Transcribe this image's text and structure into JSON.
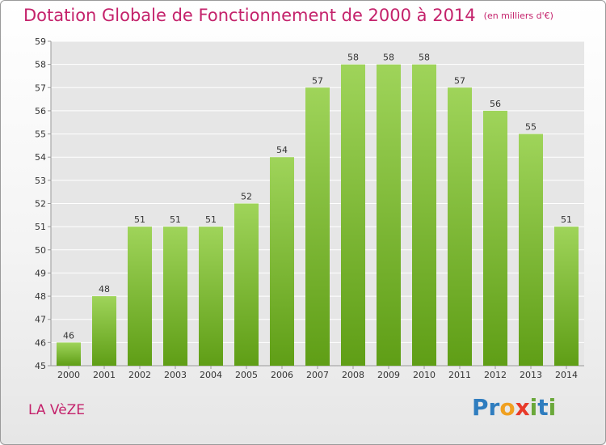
{
  "title": "Dotation Globale de Fonctionnement de 2000 à 2014",
  "unit": "(en milliers d'€)",
  "commune": "LA VèZE",
  "logo": {
    "letters": [
      "P",
      "r",
      "o",
      "x",
      "i",
      "t",
      "i"
    ],
    "colors": [
      "#2f7dbf",
      "#2f7dbf",
      "#f0a020",
      "#e83a2a",
      "#6aa83a",
      "#2f7dbf",
      "#6aa83a"
    ]
  },
  "colors": {
    "bar_top": "#9fd45a",
    "bar_bottom": "#5f9e16",
    "accent": "#c4226b"
  },
  "chart_data": {
    "type": "bar",
    "title": "Dotation Globale de Fonctionnement de 2000 à 2014",
    "categories": [
      "2000",
      "2001",
      "2002",
      "2003",
      "2004",
      "2005",
      "2006",
      "2007",
      "2008",
      "2009",
      "2010",
      "2011",
      "2012",
      "2013",
      "2014"
    ],
    "values": [
      46,
      48,
      51,
      51,
      51,
      52,
      54,
      57,
      58,
      58,
      58,
      57,
      56,
      55,
      51
    ],
    "ylim": [
      45,
      59
    ],
    "yticks": [
      45,
      46,
      47,
      48,
      49,
      50,
      51,
      52,
      53,
      54,
      55,
      56,
      57,
      58,
      59
    ],
    "grid": true
  }
}
